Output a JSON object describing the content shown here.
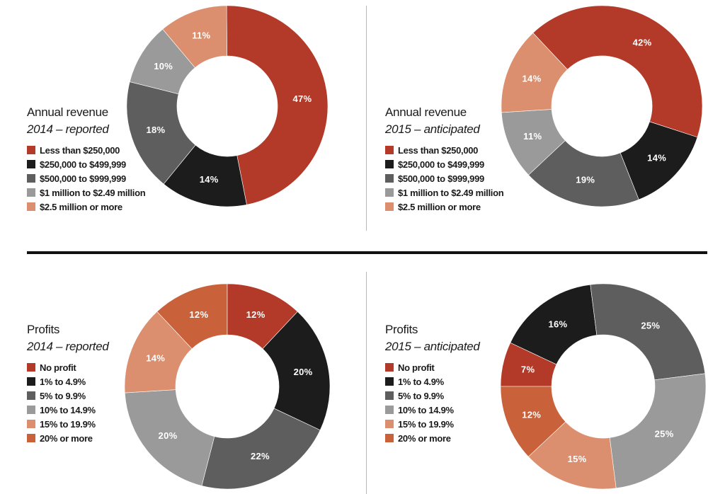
{
  "colors": {
    "dark_red": "#b33a28",
    "black": "#1c1c1c",
    "dark_gray": "#5e5e5e",
    "light_gray": "#9a9a9a",
    "salmon": "#dc8f6e",
    "rust": "#c9623a"
  },
  "chart_data": [
    {
      "type": "pie",
      "variant": "donut",
      "title": "Annual revenue",
      "subtitle": "2014 – reported",
      "legend_position": "left",
      "slices": [
        {
          "label": "Less than $250,000",
          "value": 47,
          "display": "47%",
          "color": "#b33a28"
        },
        {
          "label": "$250,000 to $499,999",
          "value": 14,
          "display": "14%",
          "color": "#1c1c1c"
        },
        {
          "label": "$500,000 to $999,999",
          "value": 18,
          "display": "18%",
          "color": "#5e5e5e"
        },
        {
          "label": "$1 million to $2.49 million",
          "value": 10,
          "display": "10%",
          "color": "#9a9a9a"
        },
        {
          "label": "$2.5 million or more",
          "value": 11,
          "display": "11%",
          "color": "#dc8f6e"
        }
      ]
    },
    {
      "type": "pie",
      "variant": "donut",
      "title": "Annual revenue",
      "subtitle": "2015 – anticipated",
      "legend_position": "left",
      "slices": [
        {
          "label": "Less than $250,000",
          "value": 42,
          "display": "42%",
          "color": "#b33a28"
        },
        {
          "label": "$250,000 to $499,999",
          "value": 14,
          "display": "14%",
          "color": "#1c1c1c"
        },
        {
          "label": "$500,000 to $999,999",
          "value": 19,
          "display": "19%",
          "color": "#5e5e5e"
        },
        {
          "label": "$1 million to $2.49 million",
          "value": 11,
          "display": "11%",
          "color": "#9a9a9a"
        },
        {
          "label": "$2.5 million or more",
          "value": 14,
          "display": "14%",
          "color": "#dc8f6e"
        }
      ]
    },
    {
      "type": "pie",
      "variant": "donut",
      "title": "Profits",
      "subtitle": "2014 – reported",
      "legend_position": "left",
      "slices": [
        {
          "label": "No profit",
          "value": 12,
          "display": "12%",
          "color": "#b33a28"
        },
        {
          "label": "1% to 4.9%",
          "value": 20,
          "display": "20%",
          "color": "#1c1c1c"
        },
        {
          "label": "5% to 9.9%",
          "value": 22,
          "display": "22%",
          "color": "#5e5e5e"
        },
        {
          "label": "10% to 14.9%",
          "value": 20,
          "display": "20%",
          "color": "#9a9a9a"
        },
        {
          "label": "15% to 19.9%",
          "value": 14,
          "display": "14%",
          "color": "#dc8f6e"
        },
        {
          "label": "20% or more",
          "value": 12,
          "display": "12%",
          "color": "#c9623a"
        }
      ]
    },
    {
      "type": "pie",
      "variant": "donut",
      "title": "Profits",
      "subtitle": "2015 – anticipated",
      "legend_position": "left",
      "slices": [
        {
          "label": "No profit",
          "value": 7,
          "display": "7%",
          "color": "#b33a28"
        },
        {
          "label": "1% to 4.9%",
          "value": 16,
          "display": "16%",
          "color": "#1c1c1c"
        },
        {
          "label": "5% to 9.9%",
          "value": 25,
          "display": "25%",
          "color": "#5e5e5e"
        },
        {
          "label": "10% to 14.9%",
          "value": 25,
          "display": "25%",
          "color": "#9a9a9a"
        },
        {
          "label": "15% to 19.9%",
          "value": 15,
          "display": "15%",
          "color": "#dc8f6e"
        },
        {
          "label": "20% or more",
          "value": 12,
          "display": "12%",
          "color": "#c9623a"
        }
      ]
    }
  ]
}
